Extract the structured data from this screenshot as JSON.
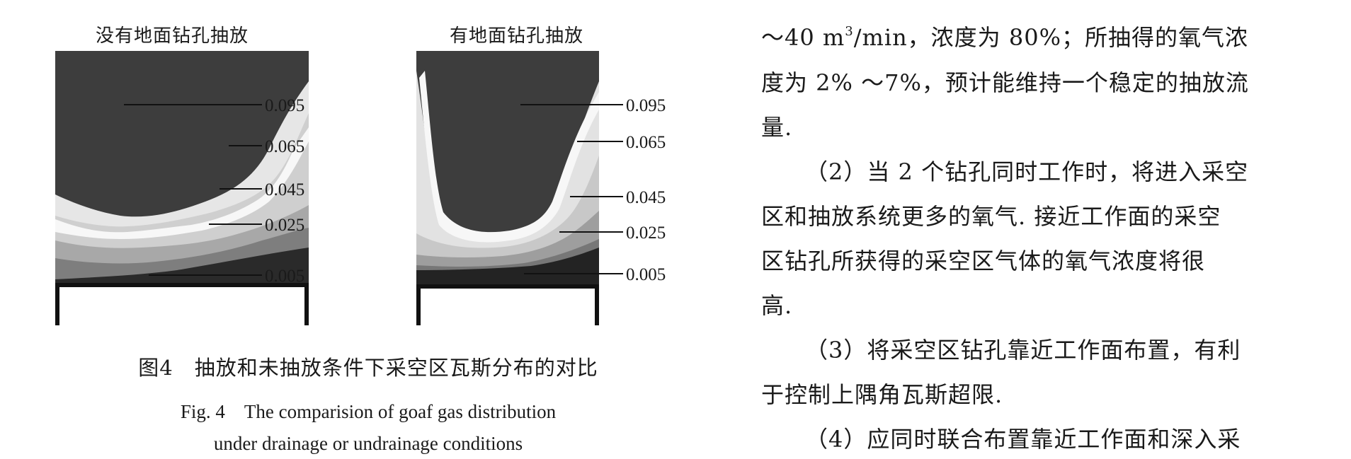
{
  "figure": {
    "left_panel": {
      "title": "没有地面钻孔抽放",
      "labels": [
        "0.095",
        "0.065",
        "0.045",
        "0.025",
        "0.005"
      ]
    },
    "right_panel": {
      "title": "有地面钻孔抽放",
      "labels": [
        "0.095",
        "0.065",
        "0.045",
        "0.025",
        "0.005"
      ]
    },
    "caption_cn": "图4　抽放和未抽放条件下采空区瓦斯分布的对比",
    "caption_en_line1": "Fig. 4　The comparision of goaf gas distribution",
    "caption_en_line2": "under drainage or undrainage conditions"
  },
  "body_text": {
    "line1_pre": "～40 m",
    "line1_sup": "3",
    "line1_post": "/min，浓度为 80%；所抽得的氧气浓",
    "line2": "度为 2% ～7%，预计能维持一个稳定的抽放流",
    "line3": "量.",
    "line4": "（2）当 2 个钻孔同时工作时，将进入采空",
    "line5": "区和抽放系统更多的氧气. 接近工作面的采空",
    "line6": "区钻孔所获得的采空区气体的氧气浓度将很",
    "line7": "高.",
    "line8": "（3）将采空区钻孔靠近工作面布置，有利",
    "line9": "于控制上隅角瓦斯超限.",
    "line10": "（4）应同时联合布置靠近工作面和深入采"
  }
}
